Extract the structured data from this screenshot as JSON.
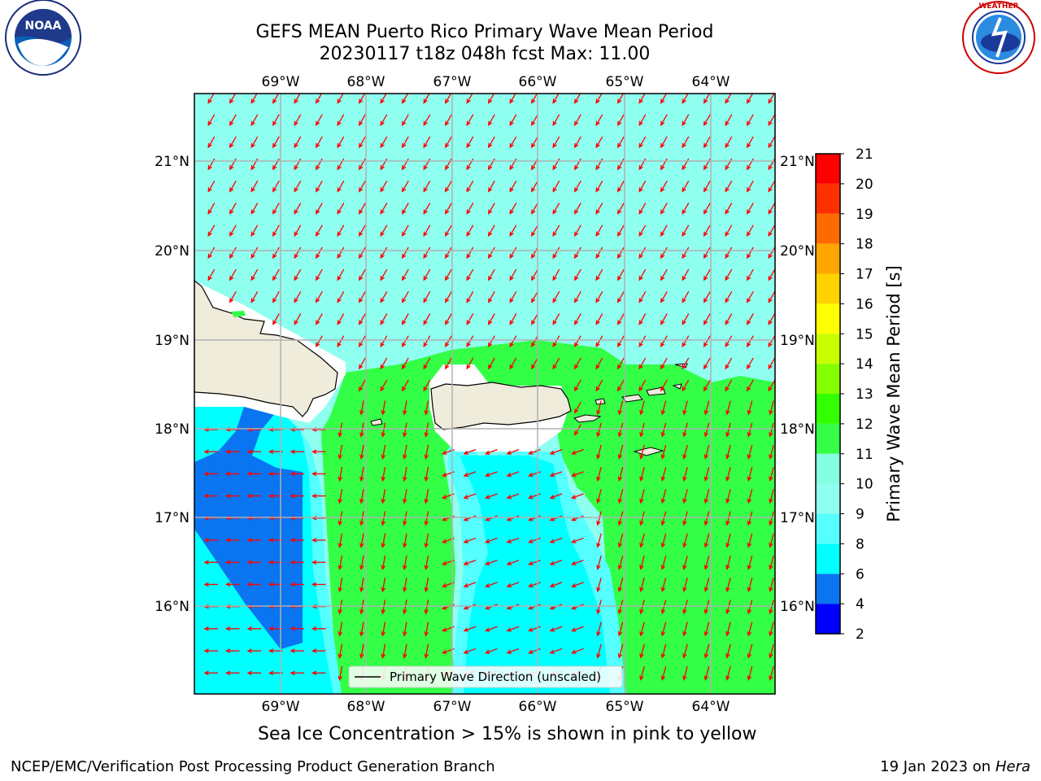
{
  "header": {
    "title_line1": "GEFS MEAN Puerto Rico Primary Wave Mean Period",
    "title_line2": "20230117 t18z 048h fcst   Max: 11.00"
  },
  "logos": {
    "left": "noara-logo",
    "left_text": "NOAA",
    "left_ring_text": "NATIONAL OCEANIC AND ATMOSPHERIC ADMINISTRATION · U.S. DEPARTMENT OF COMMERCE",
    "right": "nws-logo",
    "right_ring_text": "NATIONAL WEATHER SERVICE"
  },
  "map": {
    "lon_labels": [
      "69°W",
      "68°W",
      "67°W",
      "66°W",
      "65°W",
      "64°W"
    ],
    "lat_labels": [
      "21°N",
      "20°N",
      "19°N",
      "18°N",
      "17°N",
      "16°N"
    ],
    "legend_label": "Primary Wave Direction (unscaled)",
    "arrow_color": "#ff0000",
    "land_color": "#efecdc"
  },
  "colorbar": {
    "label": "Primary Wave Mean Period [s]",
    "ticks": [
      "2",
      "4",
      "6",
      "8",
      "9",
      "10",
      "11",
      "12",
      "13",
      "14",
      "15",
      "16",
      "17",
      "18",
      "19",
      "20",
      "21"
    ],
    "colors": [
      "#0000ff",
      "#0a75f0",
      "#00ffff",
      "#55ffff",
      "#8ffff0",
      "#84ffe0",
      "#32ff46",
      "#32ff00",
      "#84ff00",
      "#c8ff00",
      "#ffff00",
      "#ffd200",
      "#ffa500",
      "#ff6a00",
      "#ff3000",
      "#ff0000"
    ]
  },
  "footer": {
    "subtitle": "Sea Ice Concentration > 15% is shown in pink to yellow",
    "left": "NCEP/EMC/Verification Post Processing Product Generation Branch",
    "right_prefix": "19 Jan 2023 on ",
    "right_host": "Hera"
  }
}
